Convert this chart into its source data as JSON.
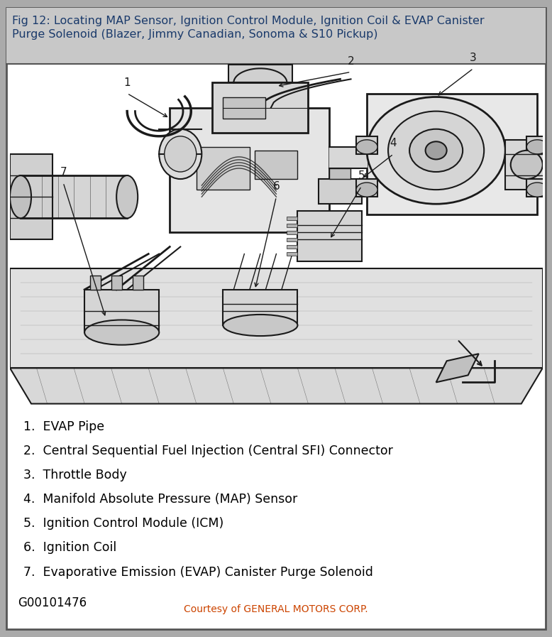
{
  "title_text": "Fig 12: Locating MAP Sensor, Ignition Control Module, Ignition Coil & EVAP Canister\nPurge Solenoid (Blazer, Jimmy Canadian, Sonoma & S10 Pickup)",
  "title_bg": "#c8c8c8",
  "title_color": "#1a3a6b",
  "title_fontsize": 11.5,
  "outer_border_color": "#555555",
  "inner_bg": "#ffffff",
  "parts_list": [
    "1.  EVAP Pipe",
    "2.  Central Sequential Fuel Injection (Central SFI) Connector",
    "3.  Throttle Body",
    "4.  Manifold Absolute Pressure (MAP) Sensor",
    "5.  Ignition Control Module (ICM)",
    "6.  Ignition Coil",
    "7.  Evaporative Emission (EVAP) Canister Purge Solenoid"
  ],
  "parts_fontsize": 12.5,
  "parts_color": "#000000",
  "catalog_number": "G00101476",
  "catalog_fontsize": 12,
  "courtesy_text": "Courtesy of GENERAL MOTORS CORP.",
  "courtesy_color": "#cc4400",
  "courtesy_fontsize": 10,
  "fig_width": 7.78,
  "fig_height": 8.97
}
